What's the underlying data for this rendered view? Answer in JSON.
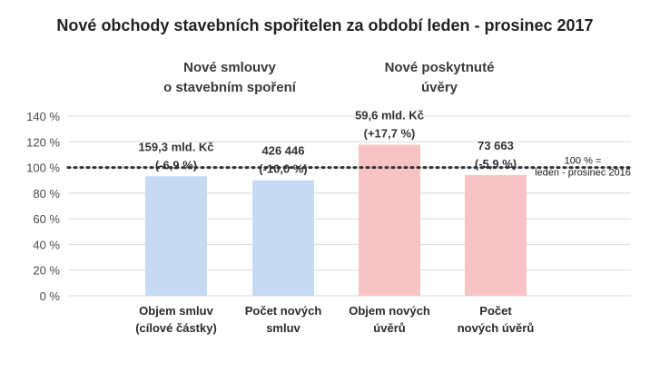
{
  "chart_data": {
    "type": "bar",
    "title": "Nové obchody stavebních spořitelen za období leden - prosinec 2017",
    "xlabel": "",
    "ylabel": "",
    "ylim": [
      0,
      140
    ],
    "yticks": [
      0,
      20,
      40,
      60,
      80,
      100,
      120,
      140
    ],
    "ytick_labels": [
      "0 %",
      "20 %",
      "40 %",
      "60 %",
      "80 %",
      "100 %",
      "120 %",
      "140 %"
    ],
    "grid": true,
    "groups": [
      {
        "label_lines": [
          "Nové smlouvy",
          "o stavebním spoření"
        ],
        "color": "#c6dbf3"
      },
      {
        "label_lines": [
          "Nové poskytnuté",
          "úvěry"
        ],
        "color": "#f7c3c5"
      }
    ],
    "categories": [
      {
        "label_lines": [
          "Objem smluv",
          "(cílové částky)"
        ],
        "value": 93.1,
        "group": 0,
        "data_label": [
          "159,3 mld. Kč",
          "(-6,9 %)"
        ]
      },
      {
        "label_lines": [
          "Počet  nových",
          "smluv"
        ],
        "value": 90.0,
        "group": 0,
        "data_label": [
          "426 446",
          "(-10,0 %)"
        ]
      },
      {
        "label_lines": [
          "Objem nových",
          "úvěrů"
        ],
        "value": 117.7,
        "group": 1,
        "data_label": [
          "59,6 mld. Kč",
          "(+17,7 %)"
        ]
      },
      {
        "label_lines": [
          "Počet",
          "nových úvěrů"
        ],
        "value": 94.1,
        "group": 1,
        "data_label": [
          "73 663",
          "(-5,9 %)"
        ]
      }
    ],
    "reference_line": {
      "value": 100,
      "label_lines": [
        "100 % =",
        "leden - prosinec 2016"
      ]
    }
  }
}
